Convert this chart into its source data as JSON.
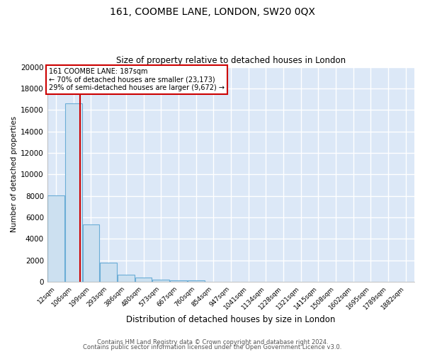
{
  "title1": "161, COOMBE LANE, LONDON, SW20 0QX",
  "title2": "Size of property relative to detached houses in London",
  "xlabel": "Distribution of detached houses by size in London",
  "ylabel": "Number of detached properties",
  "bar_values": [
    8050,
    16600,
    5350,
    1750,
    680,
    360,
    200,
    150,
    130,
    0,
    0,
    0,
    0,
    0,
    0,
    0,
    0,
    0,
    0,
    0,
    0
  ],
  "bar_labels": [
    "12sqm",
    "106sqm",
    "199sqm",
    "293sqm",
    "386sqm",
    "480sqm",
    "573sqm",
    "667sqm",
    "760sqm",
    "854sqm",
    "947sqm",
    "1041sqm",
    "1134sqm",
    "1228sqm",
    "1321sqm",
    "1415sqm",
    "1508sqm",
    "1602sqm",
    "1695sqm",
    "1789sqm",
    "1882sqm"
  ],
  "bar_color": "#cce0f0",
  "bar_edge_color": "#6badd6",
  "plot_bg_color": "#dce8f7",
  "fig_bg_color": "#ffffff",
  "grid_color": "#ffffff",
  "annotation_text_line1": "161 COOMBE LANE: 187sqm",
  "annotation_text_line2": "← 70% of detached houses are smaller (23,173)",
  "annotation_text_line3": "29% of semi-detached houses are larger (9,672) →",
  "red_line_color": "#cc0000",
  "annotation_box_color": "#ffffff",
  "annotation_box_edge": "#cc0000",
  "ylim": [
    0,
    20000
  ],
  "yticks": [
    0,
    2000,
    4000,
    6000,
    8000,
    10000,
    12000,
    14000,
    16000,
    18000,
    20000
  ],
  "footnote1": "Contains HM Land Registry data © Crown copyright and database right 2024.",
  "footnote2": "Contains public sector information licensed under the Open Government Licence v3.0."
}
